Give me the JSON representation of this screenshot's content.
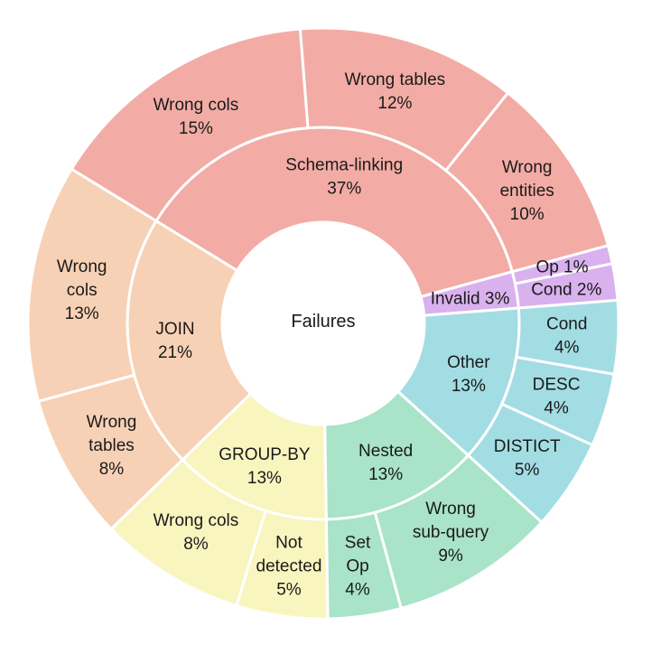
{
  "chart_data": {
    "type": "sunburst",
    "center_label": "Failures",
    "colors": {
      "schema": "#f2aca5",
      "join": "#f7d1b5",
      "groupby": "#f8f5bf",
      "nested": "#a9e3c8",
      "other": "#a2dde3",
      "invalid": "#d9b1ee"
    },
    "inner": [
      {
        "key": "invalid",
        "label": "Invalid 3%",
        "value": 3
      },
      {
        "key": "schema",
        "label": "Schema-linking\n37%",
        "value": 37
      },
      {
        "key": "join",
        "label": "JOIN\n21%",
        "value": 21
      },
      {
        "key": "groupby",
        "label": "GROUP-BY\n13%",
        "value": 13
      },
      {
        "key": "nested",
        "label": "Nested\n13%",
        "value": 13
      },
      {
        "key": "other",
        "label": "Other\n13%",
        "value": 13
      }
    ],
    "outer": [
      {
        "parent": "invalid",
        "label": "Cond 2%",
        "value": 2
      },
      {
        "parent": "invalid",
        "label": "Op 1%",
        "value": 1
      },
      {
        "parent": "schema",
        "label": "Wrong\nentities\n10%",
        "value": 10
      },
      {
        "parent": "schema",
        "label": "Wrong tables\n12%",
        "value": 12
      },
      {
        "parent": "schema",
        "label": "Wrong cols\n15%",
        "value": 15
      },
      {
        "parent": "join",
        "label": "Wrong\ncols\n13%",
        "value": 13
      },
      {
        "parent": "join",
        "label": "Wrong\ntables\n8%",
        "value": 8
      },
      {
        "parent": "groupby",
        "label": "Wrong cols\n8%",
        "value": 8
      },
      {
        "parent": "groupby",
        "label": "Not\ndetected\n5%",
        "value": 5
      },
      {
        "parent": "nested",
        "label": "Set\nOp\n4%",
        "value": 4
      },
      {
        "parent": "nested",
        "label": "Wrong\nsub-query\n9%",
        "value": 9
      },
      {
        "parent": "other",
        "label": "DISTICT\n5%",
        "value": 5
      },
      {
        "parent": "other",
        "label": "DESC\n4%",
        "value": 4
      },
      {
        "parent": "other",
        "label": "Cond\n4%",
        "value": 4
      }
    ]
  }
}
